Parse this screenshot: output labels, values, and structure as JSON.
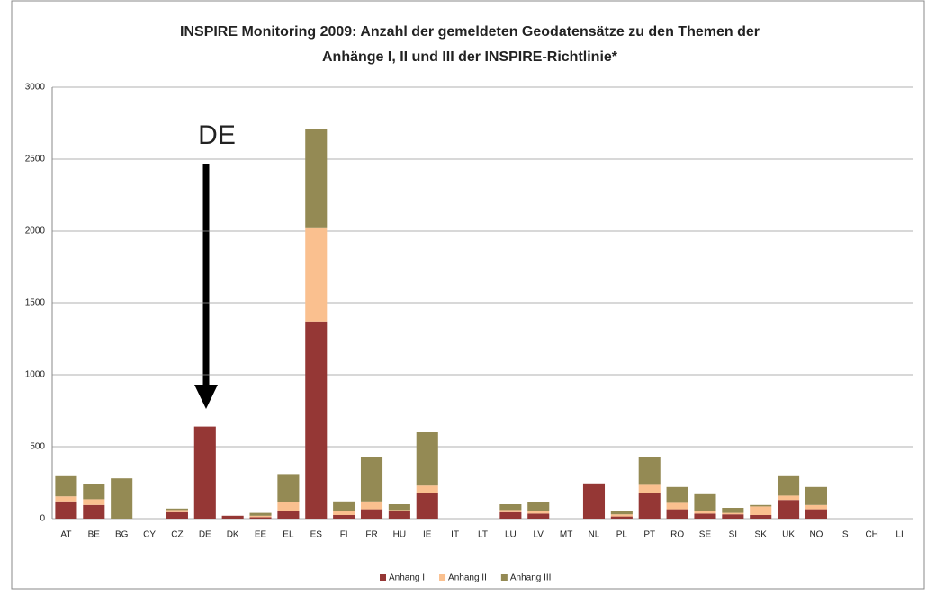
{
  "chart_data": {
    "type": "stacked_bar",
    "title": [
      "INSPIRE Monitoring 2009: Anzahl der gemeldeten Geodatensätze zu den Themen der",
      "Anhänge I, II und III der INSPIRE-Richtlinie*"
    ],
    "annotation": "DE",
    "categories": [
      "AT",
      "BE",
      "BG",
      "CY",
      "CZ",
      "DE",
      "DK",
      "EE",
      "EL",
      "ES",
      "FI",
      "FR",
      "HU",
      "IE",
      "IT",
      "LT",
      "LU",
      "LV",
      "MT",
      "NL",
      "PL",
      "PT",
      "RO",
      "SE",
      "SI",
      "SK",
      "UK",
      "NO",
      "IS",
      "CH",
      "LI"
    ],
    "series": [
      {
        "name": "Anhang I",
        "color": "#953735",
        "values": [
          120,
          95,
          0,
          0,
          45,
          640,
          20,
          10,
          50,
          1370,
          25,
          65,
          50,
          180,
          0,
          0,
          45,
          35,
          0,
          245,
          15,
          180,
          65,
          35,
          30,
          25,
          130,
          65,
          0,
          0,
          0
        ]
      },
      {
        "name": "Anhang II",
        "color": "#fac08f",
        "values": [
          35,
          40,
          0,
          0,
          15,
          0,
          0,
          10,
          65,
          650,
          25,
          55,
          10,
          50,
          0,
          0,
          15,
          15,
          0,
          0,
          15,
          55,
          45,
          20,
          10,
          60,
          30,
          30,
          0,
          0,
          0
        ]
      },
      {
        "name": "Anhang III",
        "color": "#948a54",
        "values": [
          140,
          103,
          280,
          0,
          10,
          0,
          0,
          20,
          195,
          690,
          70,
          310,
          40,
          370,
          0,
          0,
          40,
          65,
          0,
          0,
          20,
          195,
          110,
          115,
          35,
          10,
          135,
          125,
          0,
          0,
          0
        ]
      }
    ],
    "ylim": [
      0,
      3000
    ],
    "yticks": [
      0,
      500,
      1000,
      1500,
      2000,
      2500,
      3000
    ],
    "grid": true,
    "legend": "bottom"
  }
}
